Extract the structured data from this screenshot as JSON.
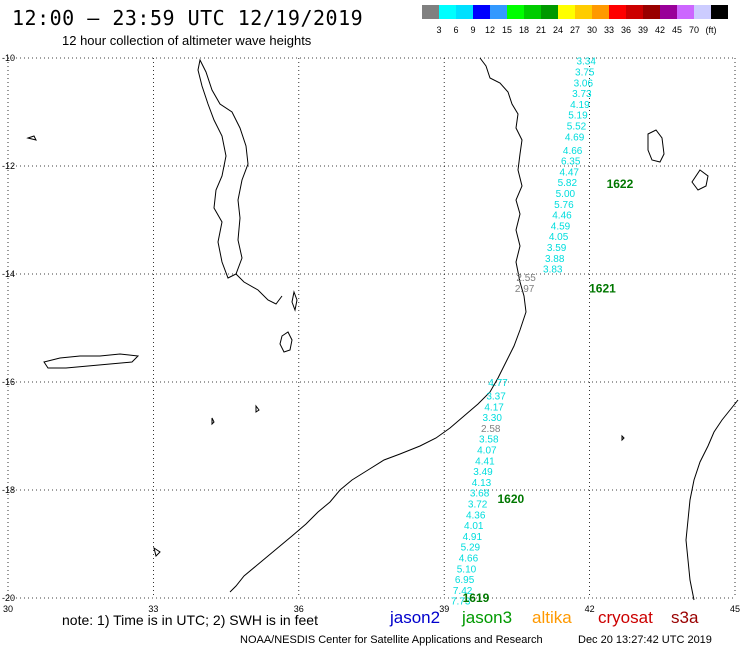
{
  "header": {
    "title": "12:00 – 23:59 UTC 12/19/2019",
    "subtitle": "12 hour collection of altimeter wave heights"
  },
  "scale": {
    "colors": [
      "#808080",
      "#00ffff",
      "#00e0ff",
      "#0000ff",
      "#3399ff",
      "#00ff00",
      "#00cc00",
      "#009900",
      "#ffff00",
      "#ffcc00",
      "#ff9900",
      "#ff0000",
      "#cc0000",
      "#990000",
      "#990099",
      "#cc66ff",
      "#ccccff",
      "#000000"
    ],
    "labels": [
      "3",
      "6",
      "9",
      "12",
      "15",
      "18",
      "21",
      "24",
      "27",
      "30",
      "33",
      "36",
      "39",
      "42",
      "45",
      "70",
      "(ft)"
    ],
    "unit": "(ft)"
  },
  "map": {
    "lon_range": [
      30,
      45
    ],
    "lat_range": [
      -20,
      -10
    ],
    "lon_ticks": [
      "30",
      "33",
      "36",
      "39",
      "42",
      "45"
    ],
    "lat_ticks": [
      "-10",
      "-12",
      "-14",
      "-16",
      "-18",
      "-20"
    ],
    "grid": "dotted",
    "track_color": "#00dddd",
    "low_color": "#808080",
    "label_color": "#007700"
  },
  "passes": [
    {
      "id": "1622",
      "label_pos": [
        42.35,
        -12.33
      ],
      "points": [
        {
          "lon": 41.93,
          "lat": -10.05,
          "swh": "3.34"
        },
        {
          "lon": 41.9,
          "lat": -10.25,
          "swh": "3.75"
        },
        {
          "lon": 41.87,
          "lat": -10.45,
          "swh": "3.06"
        },
        {
          "lon": 41.84,
          "lat": -10.65,
          "swh": "3.73"
        },
        {
          "lon": 41.8,
          "lat": -10.85,
          "swh": "4.19"
        },
        {
          "lon": 41.76,
          "lat": -11.05,
          "swh": "5.19"
        },
        {
          "lon": 41.73,
          "lat": -11.25,
          "swh": "5.52"
        },
        {
          "lon": 41.69,
          "lat": -11.45,
          "swh": "4.69"
        },
        {
          "lon": 41.65,
          "lat": -11.7,
          "swh": "4.66"
        },
        {
          "lon": 41.61,
          "lat": -11.9,
          "swh": "6.35"
        },
        {
          "lon": 41.58,
          "lat": -12.1,
          "swh": "4.47"
        },
        {
          "lon": 41.54,
          "lat": -12.3,
          "swh": "5.82"
        },
        {
          "lon": 41.5,
          "lat": -12.5,
          "swh": "5.00"
        },
        {
          "lon": 41.47,
          "lat": -12.7,
          "swh": "5.76"
        },
        {
          "lon": 41.43,
          "lat": -12.9,
          "swh": "4.46"
        },
        {
          "lon": 41.4,
          "lat": -13.1,
          "swh": "4.59"
        },
        {
          "lon": 41.36,
          "lat": -13.3,
          "swh": "4.05"
        },
        {
          "lon": 41.32,
          "lat": -13.5,
          "swh": "3.59"
        },
        {
          "lon": 41.28,
          "lat": -13.7,
          "swh": "3.88"
        },
        {
          "lon": 41.24,
          "lat": -13.9,
          "swh": "3.83"
        }
      ]
    },
    {
      "id": "1621",
      "label_pos": [
        41.99,
        -14.27
      ],
      "points": [
        {
          "lon": 40.69,
          "lat": -14.06,
          "swh": "2.55",
          "low": true
        },
        {
          "lon": 40.66,
          "lat": -14.26,
          "swh": "2.97",
          "low": true
        }
      ]
    },
    {
      "id": "1620",
      "label_pos": [
        40.1,
        -18.17
      ],
      "points": [
        {
          "lon": 40.11,
          "lat": -16.0,
          "swh": "4.77"
        },
        {
          "lon": 40.07,
          "lat": -16.25,
          "swh": "3.37"
        },
        {
          "lon": 40.03,
          "lat": -16.45,
          "swh": "4.17"
        },
        {
          "lon": 39.99,
          "lat": -16.65,
          "swh": "3.30"
        },
        {
          "lon": 39.96,
          "lat": -16.85,
          "swh": "2.58",
          "low": true
        },
        {
          "lon": 39.92,
          "lat": -17.05,
          "swh": "3.58"
        },
        {
          "lon": 39.88,
          "lat": -17.25,
          "swh": "4.07"
        },
        {
          "lon": 39.84,
          "lat": -17.45,
          "swh": "4.41"
        },
        {
          "lon": 39.8,
          "lat": -17.65,
          "swh": "3.49"
        },
        {
          "lon": 39.77,
          "lat": -17.85,
          "swh": "4.13"
        },
        {
          "lon": 39.73,
          "lat": -18.05,
          "swh": "3.68"
        },
        {
          "lon": 39.69,
          "lat": -18.25,
          "swh": "3.72"
        },
        {
          "lon": 39.65,
          "lat": -18.45,
          "swh": "4.36"
        },
        {
          "lon": 39.61,
          "lat": -18.65,
          "swh": "4.01"
        },
        {
          "lon": 39.58,
          "lat": -18.85,
          "swh": "4.91"
        },
        {
          "lon": 39.54,
          "lat": -19.05,
          "swh": "5.29"
        },
        {
          "lon": 39.5,
          "lat": -19.25,
          "swh": "4.66"
        },
        {
          "lon": 39.46,
          "lat": -19.45,
          "swh": "5.10"
        },
        {
          "lon": 39.42,
          "lat": -19.65,
          "swh": "6.95"
        },
        {
          "lon": 39.38,
          "lat": -19.85,
          "swh": "7.42"
        },
        {
          "lon": 39.34,
          "lat": -20.05,
          "swh": "7.73"
        }
      ]
    },
    {
      "id": "1619",
      "label_pos": [
        39.38,
        -20.0
      ],
      "points": []
    }
  ],
  "legend": {
    "note": "note: 1) Time is in UTC; 2) SWH is in feet",
    "satellites": [
      {
        "name": "jason2",
        "color": "#0000cc"
      },
      {
        "name": "jason3",
        "color": "#009900"
      },
      {
        "name": "altika",
        "color": "#ff9900"
      },
      {
        "name": "cryosat",
        "color": "#cc0000"
      },
      {
        "name": "s3a",
        "color": "#990000"
      }
    ]
  },
  "footer": {
    "credit": "NOAA/NESDIS Center for Satellite Applications and Research",
    "issued": "Dec 20 13:27:42 UTC 2019"
  }
}
